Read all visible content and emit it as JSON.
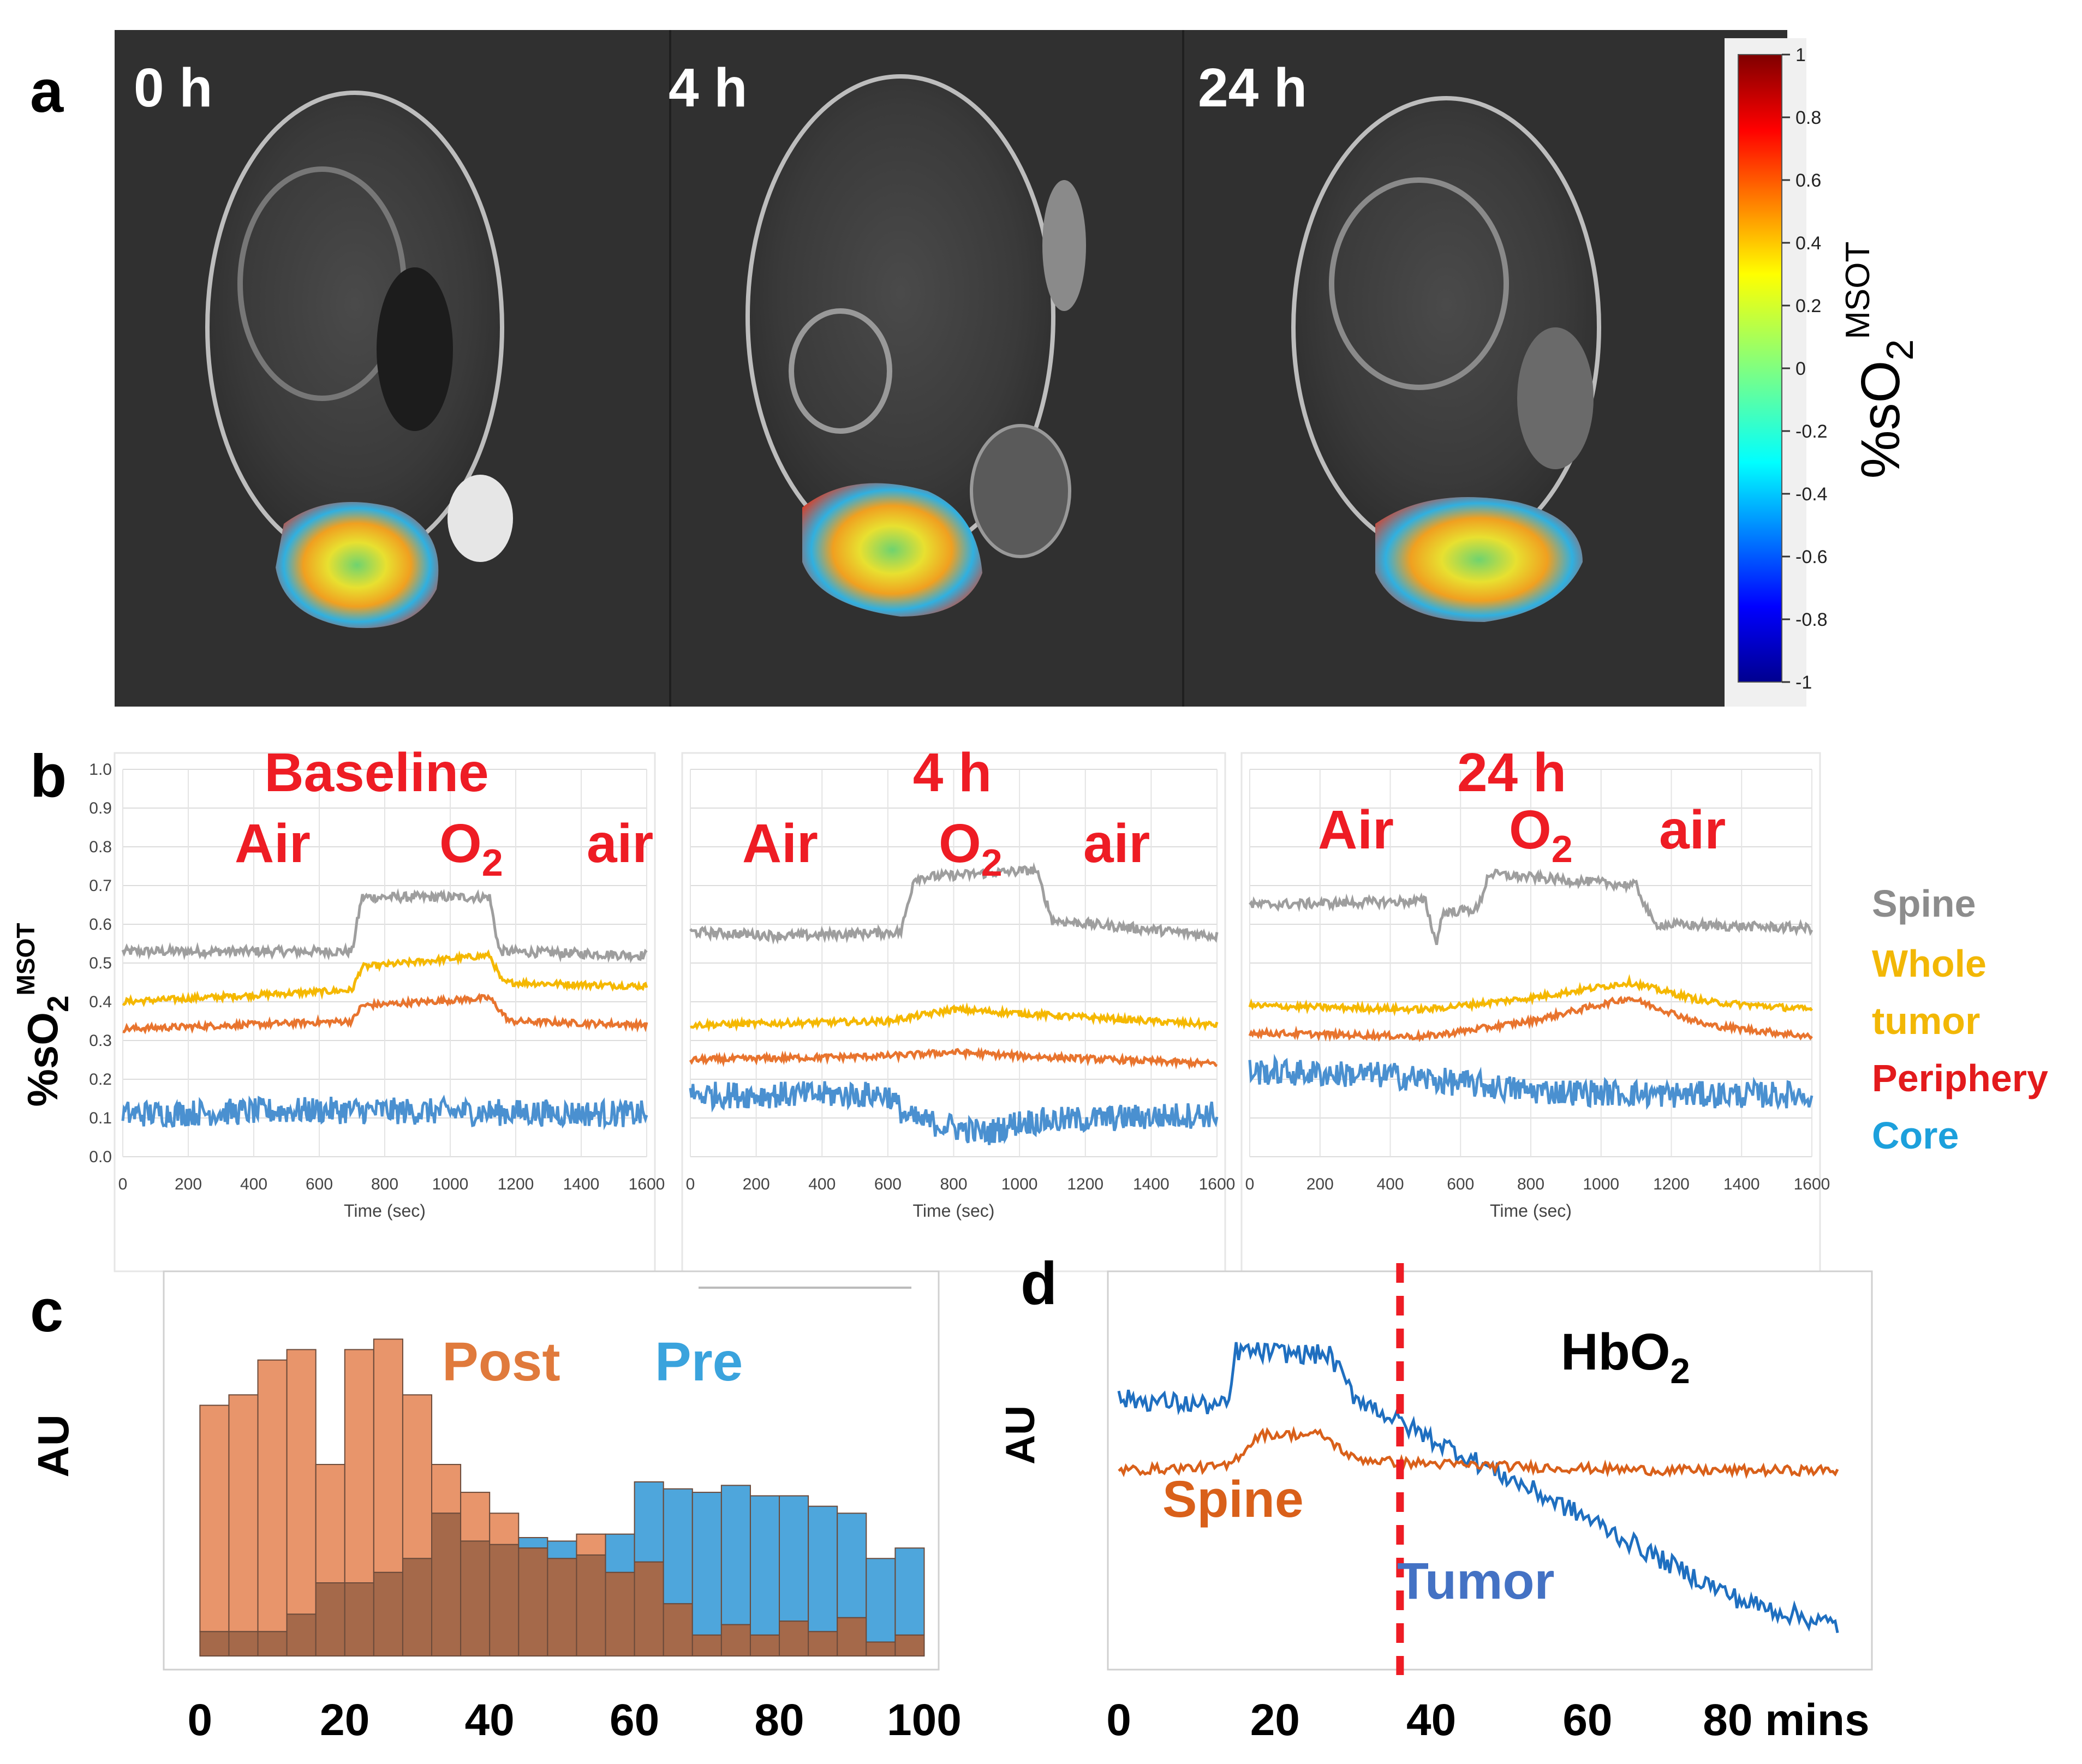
{
  "panel_labels": {
    "a": "a",
    "b": "b",
    "c": "c",
    "d": "d"
  },
  "colors": {
    "spine": "#9e9e9e",
    "whole_tumor": "#f5b800",
    "periphery": "#e8742e",
    "core": "#4a90d0",
    "red_annot": "#ee1c24",
    "spine_legend": "#8c8c8c",
    "whole_legend": "#f2b705",
    "periphery_legend": "#e31a1c",
    "core_legend": "#1ca0dc",
    "post_bar": "#e8956b",
    "pre_bar": "#4ea6dc",
    "overlap_bar": "#a5694a",
    "d_tumor": "#1f6fc0",
    "d_spine": "#d9601a",
    "d_tumor_label": "#4472c4",
    "d_spine_label": "#d9601a"
  },
  "panel_a": {
    "timepoints": [
      "0 h",
      "4 h",
      "24 h"
    ],
    "colorbar": {
      "ticks": [
        "1",
        "0.8",
        "0.6",
        "0.4",
        "0.2",
        "0",
        "-0.2",
        "-0.4",
        "-0.6",
        "-0.8",
        "-1"
      ],
      "label_main": "%sO",
      "label_sub": "2",
      "label_sup": "MSOT"
    }
  },
  "chart_data": [
    {
      "type": "line",
      "title": "Baseline",
      "phase_labels": [
        "Air",
        "O",
        "air"
      ],
      "phase_sub": "2",
      "ylabel_main": "%sO",
      "ylabel_sub": "2",
      "ylabel_sup": "MSOT",
      "xlabel": "Time (sec)",
      "xlim": [
        0,
        1600
      ],
      "ylim": [
        0,
        1
      ],
      "xticks": [
        "0",
        "200",
        "400",
        "600",
        "800",
        "1000",
        "1200",
        "1400",
        "1600"
      ],
      "yticks": [
        "0.0",
        "0.1",
        "0.2",
        "0.3",
        "0.4",
        "0.5",
        "0.6",
        "0.7",
        "0.8",
        "0.9",
        "1.0"
      ],
      "series": [
        {
          "name": "Spine",
          "x": [
            0,
            700,
            730,
            1120,
            1150,
            1600
          ],
          "y": [
            0.53,
            0.53,
            0.67,
            0.67,
            0.53,
            0.52
          ]
        },
        {
          "name": "Whole tumor",
          "x": [
            0,
            700,
            730,
            1120,
            1160,
            1600
          ],
          "y": [
            0.4,
            0.43,
            0.49,
            0.52,
            0.45,
            0.44
          ]
        },
        {
          "name": "Periphery",
          "x": [
            0,
            700,
            730,
            1120,
            1180,
            1600
          ],
          "y": [
            0.33,
            0.35,
            0.39,
            0.41,
            0.35,
            0.34
          ]
        },
        {
          "name": "Core",
          "x": [
            0,
            600,
            1600
          ],
          "y": [
            0.11,
            0.12,
            0.11
          ]
        }
      ]
    },
    {
      "type": "line",
      "title": "4 h",
      "phase_labels": [
        "Air",
        "O",
        "air"
      ],
      "phase_sub": "2",
      "xlabel": "Time (sec)",
      "xlim": [
        0,
        1600
      ],
      "ylim": [
        0,
        1
      ],
      "xticks": [
        "0",
        "200",
        "400",
        "600",
        "800",
        "1000",
        "1200",
        "1400",
        "1600"
      ],
      "series": [
        {
          "name": "Spine",
          "x": [
            0,
            300,
            640,
            680,
            1050,
            1100,
            1600
          ],
          "y": [
            0.58,
            0.57,
            0.58,
            0.72,
            0.74,
            0.61,
            0.57
          ]
        },
        {
          "name": "Whole tumor",
          "x": [
            0,
            600,
            800,
            1000,
            1600
          ],
          "y": [
            0.34,
            0.35,
            0.38,
            0.37,
            0.34
          ]
        },
        {
          "name": "Periphery",
          "x": [
            0,
            600,
            800,
            1000,
            1600
          ],
          "y": [
            0.25,
            0.26,
            0.27,
            0.26,
            0.24
          ]
        },
        {
          "name": "Core",
          "x": [
            0,
            600,
            660,
            900,
            1000,
            1600
          ],
          "y": [
            0.16,
            0.16,
            0.1,
            0.06,
            0.09,
            0.11
          ]
        }
      ]
    },
    {
      "type": "line",
      "title": "24 h",
      "phase_labels": [
        "Air",
        "O",
        "air"
      ],
      "phase_sub": "2",
      "xlabel": "Time (sec)",
      "xlim": [
        0,
        1600
      ],
      "ylim": [
        0,
        1
      ],
      "xticks": [
        "0",
        "200",
        "400",
        "600",
        "800",
        "1000",
        "1200",
        "1400",
        "1600"
      ],
      "series": [
        {
          "name": "Spine",
          "x": [
            0,
            500,
            530,
            550,
            650,
            680,
            1100,
            1150,
            1600
          ],
          "y": [
            0.65,
            0.66,
            0.55,
            0.63,
            0.64,
            0.73,
            0.7,
            0.6,
            0.59
          ]
        },
        {
          "name": "Whole tumor",
          "x": [
            0,
            500,
            800,
            1080,
            1300,
            1600
          ],
          "y": [
            0.39,
            0.38,
            0.41,
            0.45,
            0.4,
            0.38
          ]
        },
        {
          "name": "Periphery",
          "x": [
            0,
            500,
            800,
            1080,
            1300,
            1600
          ],
          "y": [
            0.32,
            0.31,
            0.35,
            0.41,
            0.34,
            0.31
          ]
        },
        {
          "name": "Core",
          "x": [
            0,
            400,
            800,
            1200,
            1600
          ],
          "y": [
            0.22,
            0.21,
            0.17,
            0.16,
            0.16
          ]
        }
      ]
    },
    {
      "type": "bar",
      "title": "",
      "annotations": [
        "Post",
        "Pre"
      ],
      "ylabel": "AU",
      "xticks": [
        "0",
        "20",
        "40",
        "60",
        "80",
        "100"
      ],
      "xlim": [
        -5,
        102
      ],
      "ylim": [
        0,
        1.05
      ],
      "bin_width": 4,
      "bin_starts": [
        0,
        4,
        8,
        12,
        16,
        20,
        24,
        28,
        32,
        36,
        40,
        44,
        48,
        52,
        56,
        60,
        64,
        68,
        72,
        76,
        80,
        84,
        88,
        92,
        96
      ],
      "series": [
        {
          "name": "Post",
          "values": [
            0.72,
            0.75,
            0.85,
            0.88,
            0.55,
            0.88,
            0.91,
            0.75,
            0.55,
            0.47,
            0.41,
            0.31,
            0.28,
            0.35,
            0.24,
            0.27,
            0.15,
            0.06,
            0.09,
            0.06,
            0.1,
            0.07,
            0.11,
            0.04,
            0.06
          ]
        },
        {
          "name": "Pre",
          "values": [
            0.07,
            0.07,
            0.07,
            0.12,
            0.21,
            0.21,
            0.24,
            0.28,
            0.41,
            0.33,
            0.32,
            0.34,
            0.33,
            0.29,
            0.35,
            0.5,
            0.48,
            0.47,
            0.49,
            0.46,
            0.46,
            0.43,
            0.41,
            0.28,
            0.31
          ]
        }
      ]
    },
    {
      "type": "line",
      "title": "HbO",
      "title_sub": "2",
      "ylabel": "AU",
      "series_labels": [
        "Spine",
        "Tumor"
      ],
      "xticks": [
        "0",
        "20",
        "40",
        "60",
        "80 mins"
      ],
      "xtick_values": [
        0,
        20,
        40,
        60,
        80
      ],
      "xlim": [
        0,
        95
      ],
      "ylim": [
        0,
        1
      ],
      "marker_x": 36,
      "series": [
        {
          "name": "Tumor",
          "x": [
            0,
            14,
            15,
            27,
            30,
            36,
            48,
            60,
            70,
            80,
            92
          ],
          "y": [
            0.68,
            0.66,
            0.8,
            0.79,
            0.69,
            0.62,
            0.5,
            0.38,
            0.27,
            0.17,
            0.11
          ]
        },
        {
          "name": "Spine",
          "x": [
            0,
            14,
            18,
            26,
            30,
            36,
            50,
            70,
            92
          ],
          "y": [
            0.5,
            0.51,
            0.59,
            0.59,
            0.53,
            0.52,
            0.51,
            0.5,
            0.5
          ]
        }
      ]
    }
  ],
  "legend_b": [
    "Spine",
    "Whole",
    "tumor",
    "Periphery",
    "Core"
  ]
}
